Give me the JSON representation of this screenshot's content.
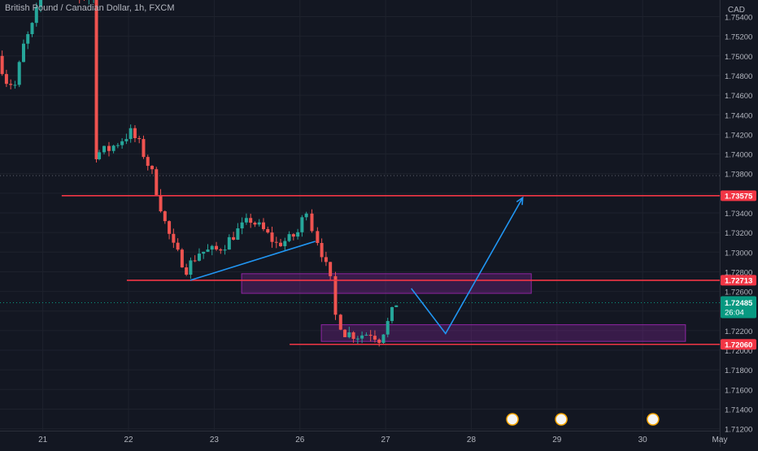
{
  "colors": {
    "bg": "#131722",
    "grid": "#1e222d",
    "text": "#b2b5be",
    "up": "#26a69a",
    "down": "#ef5350",
    "level": "#f23645",
    "trend": "#2196f3",
    "zone": "#9c27b0",
    "current": "#089981"
  },
  "chart_data": {
    "type": "candlestick",
    "title": "British Pound / Canadian Dollar, 1h, FXCM",
    "currency": "CAD",
    "yticks": [
      "1.75400",
      "1.75200",
      "1.75000",
      "1.74800",
      "1.74600",
      "1.74400",
      "1.74200",
      "1.74000",
      "1.73800",
      "1.73600",
      "1.73400",
      "1.73200",
      "1.73000",
      "1.72800",
      "1.72600",
      "1.72400",
      "1.72200",
      "1.72000",
      "1.71800",
      "1.71600",
      "1.71400",
      "1.71200"
    ],
    "ylim": [
      1.7118,
      1.7557
    ],
    "xlabels": [
      "21",
      "22",
      "23",
      "26",
      "27",
      "28",
      "29",
      "30",
      "May"
    ],
    "x_label_pos": [
      0.5,
      1.5,
      2.5,
      3.5,
      4.5,
      5.5,
      6.5,
      7.5,
      8.4
    ],
    "xlim": [
      0.0,
      8.4
    ],
    "grid": true,
    "candle_anchors": [
      [
        0.0,
        1.75
      ],
      [
        0.1,
        1.7475
      ],
      [
        0.2,
        1.747
      ],
      [
        0.3,
        1.751
      ],
      [
        0.4,
        1.753
      ],
      [
        0.5,
        1.756
      ],
      [
        0.9,
        1.756
      ],
      [
        1.12,
        1.756
      ],
      [
        1.13,
        1.74
      ],
      [
        1.3,
        1.7405
      ],
      [
        1.45,
        1.7415
      ],
      [
        1.55,
        1.7422
      ],
      [
        1.65,
        1.741
      ],
      [
        1.8,
        1.738
      ],
      [
        1.95,
        1.733
      ],
      [
        2.05,
        1.7305
      ],
      [
        2.2,
        1.7283
      ],
      [
        2.35,
        1.73
      ],
      [
        2.55,
        1.7302
      ],
      [
        2.65,
        1.7308
      ],
      [
        2.8,
        1.7322
      ],
      [
        2.95,
        1.7333
      ],
      [
        3.1,
        1.7322
      ],
      [
        3.25,
        1.7308
      ],
      [
        3.4,
        1.7313
      ],
      [
        3.5,
        1.732
      ],
      [
        3.6,
        1.7345
      ],
      [
        3.68,
        1.7325
      ],
      [
        3.78,
        1.73
      ],
      [
        3.88,
        1.727
      ],
      [
        3.95,
        1.7235
      ],
      [
        4.05,
        1.7218
      ],
      [
        4.2,
        1.7215
      ],
      [
        4.35,
        1.7218
      ],
      [
        4.45,
        1.7212
      ],
      [
        4.55,
        1.7228
      ],
      [
        4.65,
        1.7248
      ]
    ],
    "price_levels": [
      {
        "label": "1.73575",
        "value": 1.73575,
        "x_start": 0.72
      },
      {
        "label": "1.72713",
        "value": 1.72713,
        "x_start": 1.48
      },
      {
        "label": "1.72060",
        "value": 1.7206,
        "x_start": 3.38
      }
    ],
    "current_price": {
      "label": "1.72485",
      "value": 1.72485,
      "countdown": "26:04"
    },
    "zones": [
      {
        "x": [
          2.82,
          6.2
        ],
        "y": [
          1.7258,
          1.7278
        ]
      },
      {
        "x": [
          3.75,
          8.0
        ],
        "y": [
          1.7209,
          1.7226
        ]
      }
    ],
    "trendline": [
      [
        2.22,
        1.72713
      ],
      [
        3.68,
        1.7311
      ]
    ],
    "projection": [
      [
        4.8,
        1.7263
      ],
      [
        5.2,
        1.7217
      ],
      [
        6.1,
        1.73555
      ]
    ],
    "dotted_levels": [
      1.7378,
      1.72485
    ],
    "events_x": [
      5.98,
      6.55,
      7.62
    ]
  }
}
